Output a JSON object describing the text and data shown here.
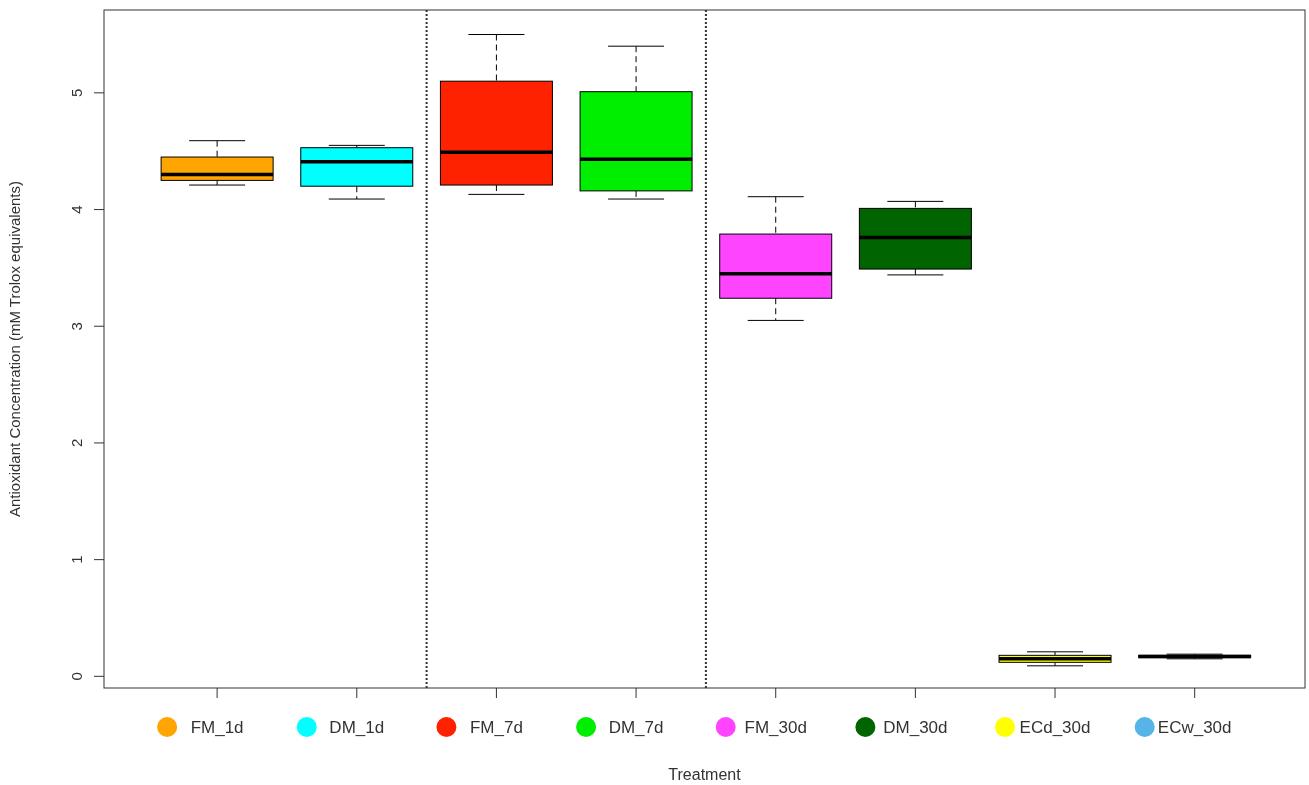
{
  "chart_data": {
    "type": "box",
    "xlabel": "Treatment",
    "ylabel": "Antioxidant Concentration (mM Trolox equivalents)",
    "categories": [
      "FM_1d",
      "DM_1d",
      "FM_7d",
      "DM_7d",
      "FM_30d",
      "DM_30d",
      "ECd_30d",
      "ECw_30d"
    ],
    "colors": [
      "#ffa500",
      "#00ffff",
      "#ff2200",
      "#00ee00",
      "#ff44ff",
      "#006400",
      "#ffff00",
      "#56b4e9"
    ],
    "boxes": [
      {
        "low": 4.21,
        "q1": 4.25,
        "median": 4.3,
        "q3": 4.45,
        "high": 4.59
      },
      {
        "low": 4.09,
        "q1": 4.2,
        "median": 4.41,
        "q3": 4.53,
        "high": 4.55
      },
      {
        "low": 4.13,
        "q1": 4.21,
        "median": 4.49,
        "q3": 5.1,
        "high": 5.5
      },
      {
        "low": 4.09,
        "q1": 4.16,
        "median": 4.43,
        "q3": 5.01,
        "high": 5.4
      },
      {
        "low": 3.05,
        "q1": 3.24,
        "median": 3.45,
        "q3": 3.79,
        "high": 4.11
      },
      {
        "low": 3.44,
        "q1": 3.49,
        "median": 3.76,
        "q3": 4.01,
        "high": 4.07
      },
      {
        "low": 0.09,
        "q1": 0.12,
        "median": 0.15,
        "q3": 0.18,
        "high": 0.21
      },
      {
        "low": 0.15,
        "q1": 0.16,
        "median": 0.17,
        "q3": 0.18,
        "high": 0.19
      }
    ],
    "ylim": [
      -0.1,
      5.71
    ],
    "yticks": [
      0,
      1,
      2,
      3,
      4,
      5
    ],
    "grid": false
  }
}
